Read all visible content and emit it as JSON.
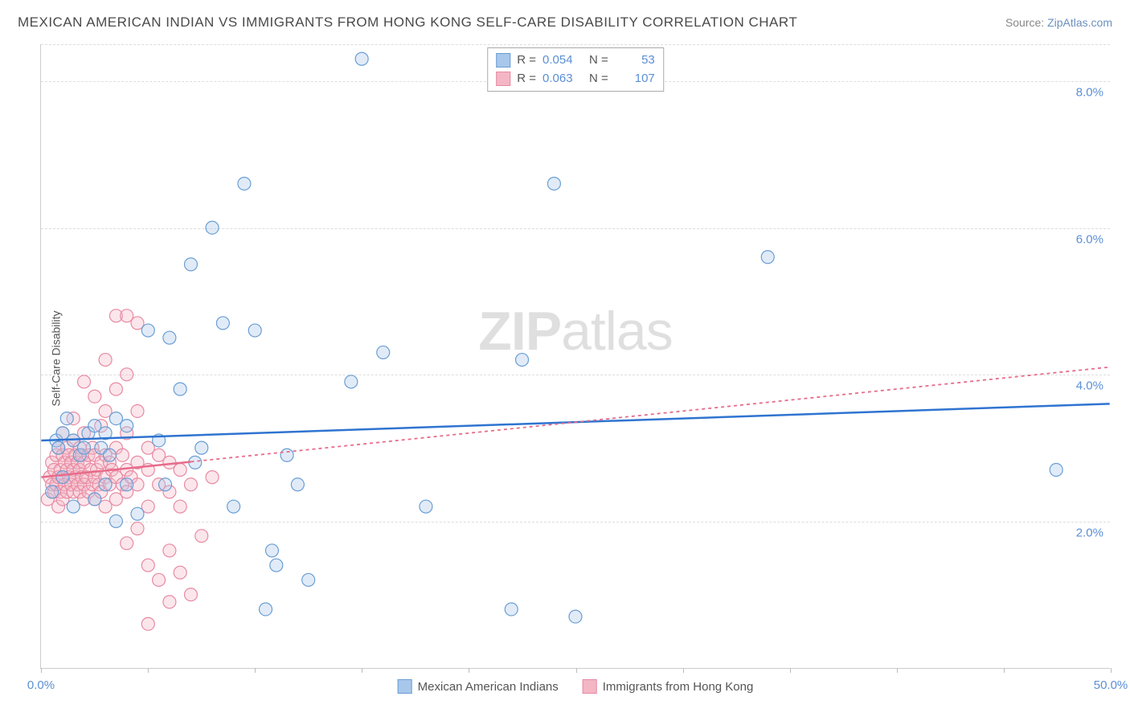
{
  "header": {
    "title": "MEXICAN AMERICAN INDIAN VS IMMIGRANTS FROM HONG KONG SELF-CARE DISABILITY CORRELATION CHART",
    "source_prefix": "Source: ",
    "source_link": "ZipAtlas.com"
  },
  "watermark": {
    "zip": "ZIP",
    "atlas": "atlas"
  },
  "chart": {
    "type": "scatter",
    "ylabel": "Self-Care Disability",
    "xlim": [
      0,
      50
    ],
    "ylim": [
      0,
      8.5
    ],
    "yticks": [
      2.0,
      4.0,
      6.0,
      8.0
    ],
    "ytick_labels": [
      "2.0%",
      "4.0%",
      "6.0%",
      "8.0%"
    ],
    "xticks_minor": [
      0,
      5,
      10,
      15,
      20,
      25,
      30,
      35,
      40,
      45,
      50
    ],
    "xtick_labels": {
      "0": "0.0%",
      "50": "50.0%"
    },
    "grid_color": "#dddddd",
    "axis_color": "#cccccc",
    "label_color": "#5a8fd6",
    "marker_radius": 8,
    "marker_stroke_width": 1.2,
    "marker_fill_opacity": 0.35,
    "background_color": "#ffffff",
    "series": [
      {
        "key": "blue",
        "name": "Mexican American Indians",
        "R": "0.054",
        "N": "53",
        "color_fill": "#a8c7eb",
        "color_stroke": "#6a9ed4",
        "line_color": "#2f74d0",
        "line_dash": "none",
        "trend": {
          "x1": 0,
          "y1": 3.1,
          "x2": 50,
          "y2": 3.6,
          "solid_until_x": 50
        },
        "points": [
          [
            0.5,
            2.4
          ],
          [
            0.7,
            3.1
          ],
          [
            0.8,
            3.0
          ],
          [
            1.0,
            2.6
          ],
          [
            1.0,
            3.2
          ],
          [
            1.2,
            3.4
          ],
          [
            1.5,
            2.2
          ],
          [
            1.5,
            3.1
          ],
          [
            1.8,
            2.9
          ],
          [
            2.0,
            3.0
          ],
          [
            2.2,
            3.2
          ],
          [
            2.5,
            2.3
          ],
          [
            2.5,
            3.3
          ],
          [
            2.8,
            3.0
          ],
          [
            3.0,
            2.5
          ],
          [
            3.0,
            3.2
          ],
          [
            3.2,
            2.9
          ],
          [
            3.5,
            3.4
          ],
          [
            3.5,
            2.0
          ],
          [
            4.0,
            2.5
          ],
          [
            4.0,
            3.3
          ],
          [
            4.5,
            2.1
          ],
          [
            5.0,
            4.6
          ],
          [
            5.5,
            3.1
          ],
          [
            5.8,
            2.5
          ],
          [
            6.0,
            4.5
          ],
          [
            6.5,
            3.8
          ],
          [
            7.0,
            5.5
          ],
          [
            7.2,
            2.8
          ],
          [
            7.5,
            3.0
          ],
          [
            8.0,
            6.0
          ],
          [
            8.5,
            4.7
          ],
          [
            9.0,
            2.2
          ],
          [
            9.5,
            6.6
          ],
          [
            10.0,
            4.6
          ],
          [
            10.5,
            0.8
          ],
          [
            10.8,
            1.6
          ],
          [
            11.0,
            1.4
          ],
          [
            11.5,
            2.9
          ],
          [
            12.0,
            2.5
          ],
          [
            12.5,
            1.2
          ],
          [
            14.5,
            3.9
          ],
          [
            15.0,
            8.3
          ],
          [
            16.0,
            4.3
          ],
          [
            18.0,
            2.2
          ],
          [
            22.0,
            0.8
          ],
          [
            22.5,
            4.2
          ],
          [
            24.0,
            6.6
          ],
          [
            25.0,
            0.7
          ],
          [
            34.0,
            5.6
          ],
          [
            47.5,
            2.7
          ]
        ]
      },
      {
        "key": "pink",
        "name": "Immigrants from Hong Kong",
        "R": "0.063",
        "N": "107",
        "color_fill": "#f4b6c5",
        "color_stroke": "#e88aa2",
        "line_color": "#e86b8a",
        "line_dash": "4 4",
        "trend": {
          "x1": 0,
          "y1": 2.6,
          "x2": 50,
          "y2": 4.1,
          "solid_until_x": 7
        },
        "points": [
          [
            0.3,
            2.3
          ],
          [
            0.4,
            2.6
          ],
          [
            0.5,
            2.5
          ],
          [
            0.5,
            2.8
          ],
          [
            0.6,
            2.4
          ],
          [
            0.6,
            2.7
          ],
          [
            0.7,
            2.5
          ],
          [
            0.7,
            2.9
          ],
          [
            0.8,
            2.2
          ],
          [
            0.8,
            2.6
          ],
          [
            0.8,
            3.0
          ],
          [
            0.9,
            2.4
          ],
          [
            0.9,
            2.7
          ],
          [
            1.0,
            2.3
          ],
          [
            1.0,
            2.6
          ],
          [
            1.0,
            2.9
          ],
          [
            1.0,
            3.2
          ],
          [
            1.1,
            2.5
          ],
          [
            1.1,
            2.8
          ],
          [
            1.2,
            2.4
          ],
          [
            1.2,
            2.7
          ],
          [
            1.2,
            3.0
          ],
          [
            1.3,
            2.6
          ],
          [
            1.3,
            2.9
          ],
          [
            1.4,
            2.5
          ],
          [
            1.4,
            2.8
          ],
          [
            1.5,
            2.4
          ],
          [
            1.5,
            2.7
          ],
          [
            1.5,
            3.1
          ],
          [
            1.5,
            3.4
          ],
          [
            1.6,
            2.6
          ],
          [
            1.6,
            2.9
          ],
          [
            1.7,
            2.5
          ],
          [
            1.7,
            2.8
          ],
          [
            1.8,
            2.4
          ],
          [
            1.8,
            2.7
          ],
          [
            1.8,
            3.0
          ],
          [
            1.9,
            2.6
          ],
          [
            1.9,
            2.9
          ],
          [
            2.0,
            2.3
          ],
          [
            2.0,
            2.5
          ],
          [
            2.0,
            2.8
          ],
          [
            2.0,
            3.2
          ],
          [
            2.0,
            3.9
          ],
          [
            2.1,
            2.6
          ],
          [
            2.2,
            2.4
          ],
          [
            2.2,
            2.9
          ],
          [
            2.3,
            2.7
          ],
          [
            2.4,
            2.5
          ],
          [
            2.4,
            3.0
          ],
          [
            2.5,
            2.3
          ],
          [
            2.5,
            2.6
          ],
          [
            2.5,
            2.9
          ],
          [
            2.5,
            3.7
          ],
          [
            2.6,
            2.7
          ],
          [
            2.7,
            2.5
          ],
          [
            2.8,
            2.4
          ],
          [
            2.8,
            2.8
          ],
          [
            2.8,
            3.3
          ],
          [
            3.0,
            2.2
          ],
          [
            3.0,
            2.6
          ],
          [
            3.0,
            2.9
          ],
          [
            3.0,
            3.5
          ],
          [
            3.0,
            4.2
          ],
          [
            3.2,
            2.5
          ],
          [
            3.2,
            2.8
          ],
          [
            3.3,
            2.7
          ],
          [
            3.5,
            2.3
          ],
          [
            3.5,
            2.6
          ],
          [
            3.5,
            3.0
          ],
          [
            3.5,
            3.8
          ],
          [
            3.5,
            4.8
          ],
          [
            3.8,
            2.5
          ],
          [
            3.8,
            2.9
          ],
          [
            4.0,
            1.7
          ],
          [
            4.0,
            2.4
          ],
          [
            4.0,
            2.7
          ],
          [
            4.0,
            3.2
          ],
          [
            4.0,
            4.0
          ],
          [
            4.0,
            4.8
          ],
          [
            4.2,
            2.6
          ],
          [
            4.5,
            1.9
          ],
          [
            4.5,
            2.5
          ],
          [
            4.5,
            2.8
          ],
          [
            4.5,
            3.5
          ],
          [
            4.5,
            4.7
          ],
          [
            5.0,
            0.6
          ],
          [
            5.0,
            1.4
          ],
          [
            5.0,
            2.2
          ],
          [
            5.0,
            2.7
          ],
          [
            5.0,
            3.0
          ],
          [
            5.5,
            1.2
          ],
          [
            5.5,
            2.5
          ],
          [
            5.5,
            2.9
          ],
          [
            6.0,
            0.9
          ],
          [
            6.0,
            1.6
          ],
          [
            6.0,
            2.4
          ],
          [
            6.0,
            2.8
          ],
          [
            6.5,
            1.3
          ],
          [
            6.5,
            2.2
          ],
          [
            6.5,
            2.7
          ],
          [
            7.0,
            1.0
          ],
          [
            7.0,
            2.5
          ],
          [
            7.5,
            1.8
          ],
          [
            8.0,
            2.6
          ]
        ]
      }
    ],
    "legend_top": {
      "r_label": "R =",
      "n_label": "N ="
    },
    "legend_bottom": [
      {
        "series": "blue"
      },
      {
        "series": "pink"
      }
    ]
  }
}
